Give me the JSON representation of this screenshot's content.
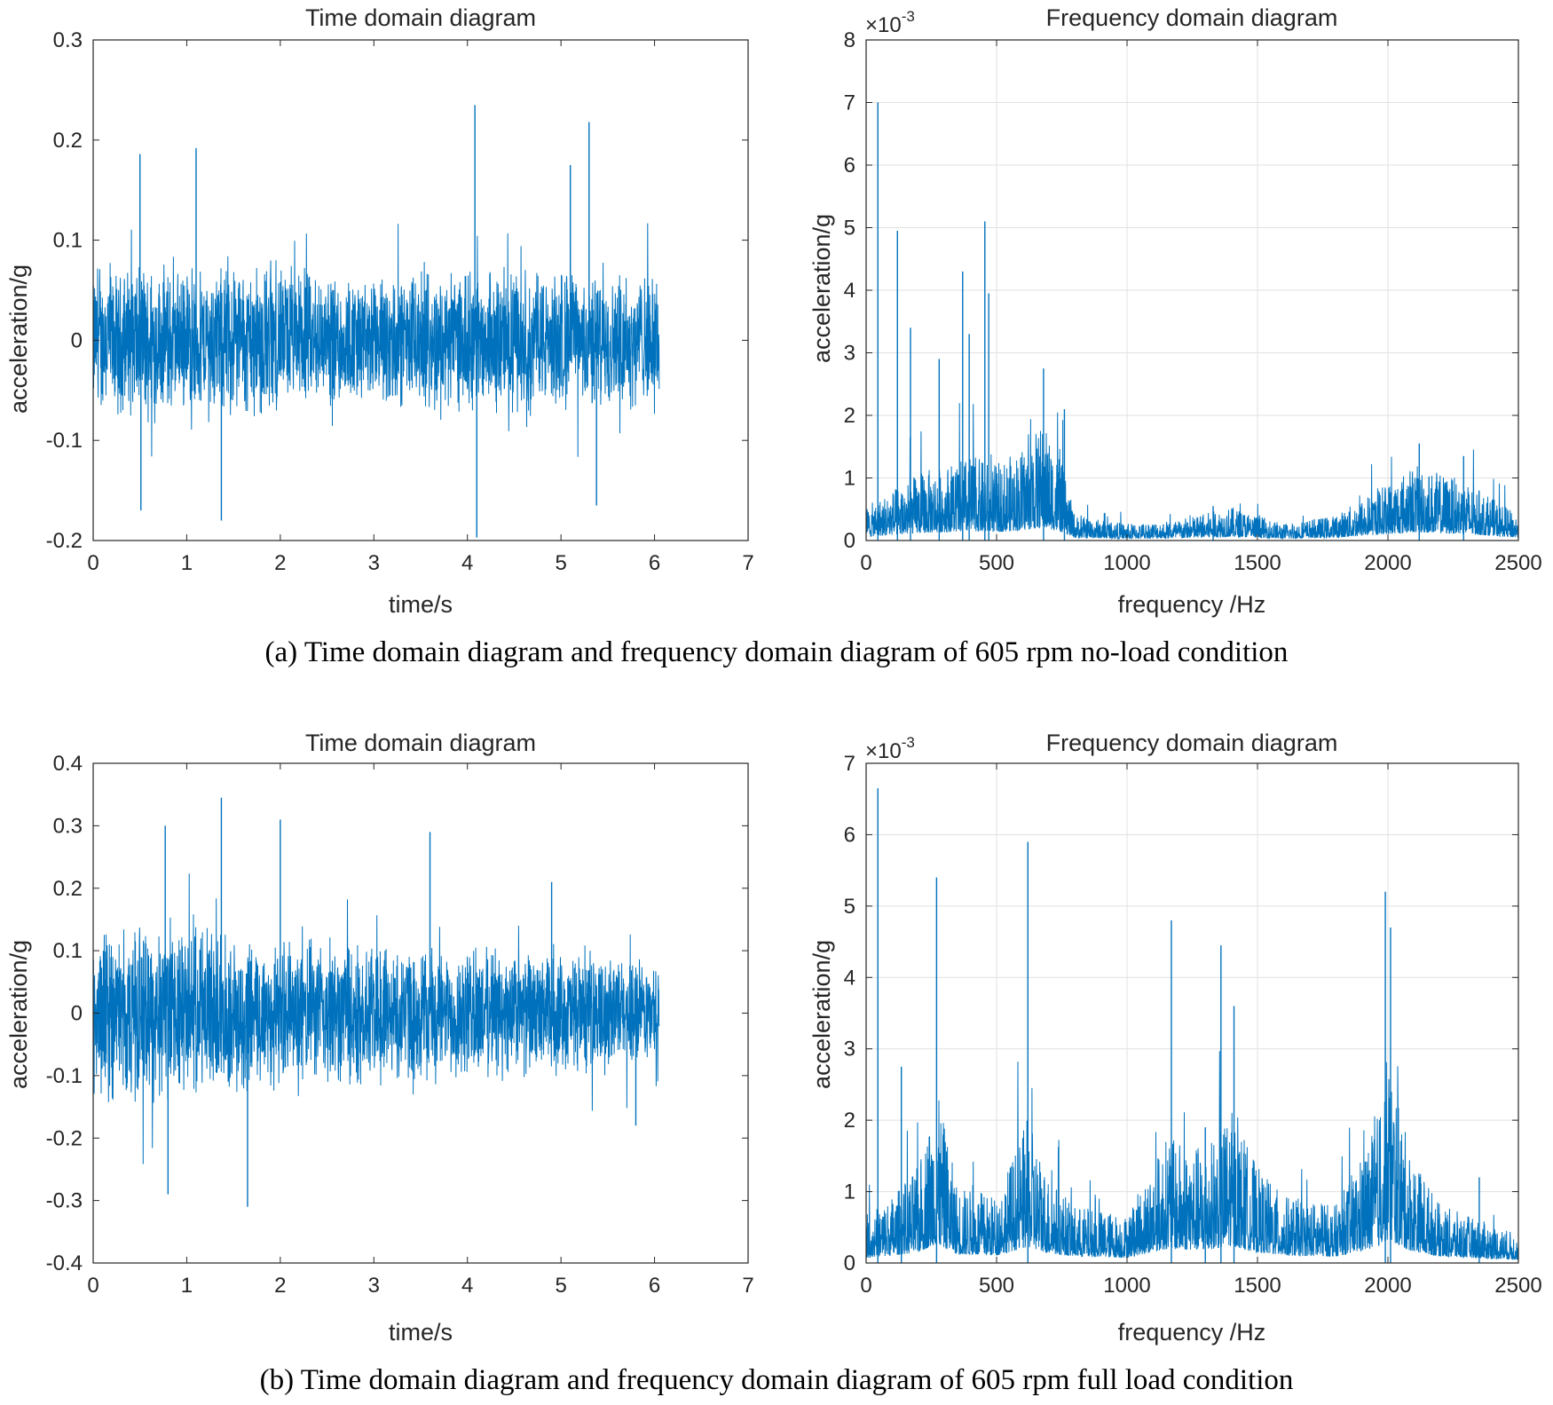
{
  "figure": {
    "caption_a": "(a) Time domain diagram and frequency domain diagram of 605 rpm no-load condition",
    "caption_b": "(b) Time domain diagram and frequency domain diagram of 605 rpm full load condition"
  },
  "panels": {
    "a_time": {
      "title": "Time domain diagram",
      "xlabel": "time/s",
      "ylabel": "acceleration/g"
    },
    "a_freq": {
      "title": "Frequency domain diagram",
      "xlabel": "frequency /Hz",
      "ylabel": "acceleration/g",
      "multiplier": "×10",
      "exponent": "-3"
    },
    "b_time": {
      "title": "Time domain diagram",
      "xlabel": "time/s",
      "ylabel": "acceleration/g"
    },
    "b_freq": {
      "title": "Frequency domain diagram",
      "xlabel": "frequency /Hz",
      "ylabel": "acceleration/g",
      "multiplier": "×10",
      "exponent": "-3"
    }
  },
  "chart_data": [
    {
      "id": "a_time",
      "type": "line",
      "title": "Time domain diagram",
      "xlabel": "time/s",
      "ylabel": "acceleration/g",
      "xlim": [
        0,
        7
      ],
      "ylim": [
        -0.2,
        0.3
      ],
      "xticks": [
        0,
        1,
        2,
        3,
        4,
        5,
        6,
        7
      ],
      "yticks": [
        -0.2,
        -0.1,
        0,
        0.1,
        0.2,
        0.3
      ],
      "ytick_labels": [
        "-0.2",
        "-0.1",
        "0",
        "0.1",
        "0.2",
        "0.3"
      ],
      "grid": false,
      "color": "#0072BD",
      "signal": {
        "t_start": 0,
        "t_end": 6.05,
        "offset": 0.0,
        "envelope": [
          [
            0,
            0.07
          ],
          [
            1.5,
            0.07
          ],
          [
            3.0,
            0.06
          ],
          [
            4.5,
            0.065
          ],
          [
            6.05,
            0.06
          ]
        ]
      },
      "peaks": [
        [
          0.5,
          0.186
        ],
        [
          0.51,
          -0.17
        ],
        [
          1.1,
          0.192
        ],
        [
          1.37,
          -0.18
        ],
        [
          4.08,
          0.235
        ],
        [
          4.1,
          -0.197
        ],
        [
          5.1,
          0.175
        ],
        [
          5.3,
          0.218
        ],
        [
          5.38,
          -0.165
        ]
      ]
    },
    {
      "id": "a_freq",
      "type": "line",
      "title": "Frequency domain diagram",
      "xlabel": "frequency /Hz",
      "ylabel": "acceleration/g",
      "xlim": [
        0,
        2500
      ],
      "ylim": [
        0,
        8
      ],
      "y_multiplier": "×10^-3",
      "xticks": [
        0,
        500,
        1000,
        1500,
        2000,
        2500
      ],
      "yticks": [
        0,
        1,
        2,
        3,
        4,
        5,
        6,
        7,
        8
      ],
      "grid": true,
      "color": "#0072BD",
      "spectrum_envelope": [
        [
          0,
          0.4
        ],
        [
          100,
          0.6
        ],
        [
          200,
          0.8
        ],
        [
          300,
          0.9
        ],
        [
          400,
          1.0
        ],
        [
          500,
          0.9
        ],
        [
          600,
          1.1
        ],
        [
          680,
          1.4
        ],
        [
          750,
          0.9
        ],
        [
          800,
          0.3
        ],
        [
          1000,
          0.2
        ],
        [
          1200,
          0.25
        ],
        [
          1400,
          0.4
        ],
        [
          1600,
          0.2
        ],
        [
          1800,
          0.3
        ],
        [
          2000,
          0.7
        ],
        [
          2100,
          0.9
        ],
        [
          2200,
          0.8
        ],
        [
          2300,
          0.7
        ],
        [
          2500,
          0.3
        ]
      ],
      "peaks": [
        [
          45,
          7.0
        ],
        [
          120,
          4.95
        ],
        [
          170,
          3.4
        ],
        [
          280,
          2.9
        ],
        [
          370,
          4.3
        ],
        [
          395,
          3.3
        ],
        [
          455,
          5.1
        ],
        [
          470,
          3.95
        ],
        [
          680,
          2.75
        ],
        [
          760,
          2.1
        ],
        [
          1330,
          0.55
        ],
        [
          2120,
          1.55
        ],
        [
          2290,
          1.35
        ]
      ]
    },
    {
      "id": "b_time",
      "type": "line",
      "title": "Time domain diagram",
      "xlabel": "time/s",
      "ylabel": "acceleration/g",
      "xlim": [
        0,
        7
      ],
      "ylim": [
        -0.4,
        0.4
      ],
      "xticks": [
        0,
        1,
        2,
        3,
        4,
        5,
        6,
        7
      ],
      "yticks": [
        -0.4,
        -0.3,
        -0.2,
        -0.1,
        0,
        0.1,
        0.2,
        0.3,
        0.4
      ],
      "ytick_labels": [
        "-0.4",
        "-0.3",
        "-0.2",
        "-0.1",
        "0",
        "0.1",
        "0.2",
        "0.3",
        "0.4"
      ],
      "grid": false,
      "color": "#0072BD",
      "signal": {
        "t_start": 0,
        "t_end": 6.05,
        "offset": 0.0,
        "envelope": [
          [
            0,
            0.13
          ],
          [
            1.5,
            0.12
          ],
          [
            3.0,
            0.1
          ],
          [
            4.5,
            0.095
          ],
          [
            6.05,
            0.08
          ]
        ]
      },
      "peaks": [
        [
          0.77,
          0.3
        ],
        [
          0.8,
          -0.29
        ],
        [
          1.37,
          0.345
        ],
        [
          1.65,
          -0.31
        ],
        [
          2.0,
          0.31
        ],
        [
          3.6,
          0.29
        ],
        [
          4.9,
          0.21
        ],
        [
          5.8,
          -0.18
        ]
      ]
    },
    {
      "id": "b_freq",
      "type": "line",
      "title": "Frequency domain diagram",
      "xlabel": "frequency /Hz",
      "ylabel": "acceleration/g",
      "xlim": [
        0,
        2500
      ],
      "ylim": [
        0,
        7
      ],
      "y_multiplier": "×10^-3",
      "xticks": [
        0,
        500,
        1000,
        1500,
        2000,
        2500
      ],
      "yticks": [
        0,
        1,
        2,
        3,
        4,
        5,
        6,
        7
      ],
      "grid": true,
      "color": "#0072BD",
      "spectrum_envelope": [
        [
          0,
          0.5
        ],
        [
          100,
          0.7
        ],
        [
          200,
          1.0
        ],
        [
          270,
          1.8
        ],
        [
          350,
          0.8
        ],
        [
          500,
          0.7
        ],
        [
          620,
          1.5
        ],
        [
          700,
          0.9
        ],
        [
          800,
          0.6
        ],
        [
          1000,
          0.5
        ],
        [
          1150,
          1.3
        ],
        [
          1300,
          1.2
        ],
        [
          1400,
          1.6
        ],
        [
          1500,
          1.0
        ],
        [
          1600,
          0.7
        ],
        [
          1800,
          0.6
        ],
        [
          1950,
          1.4
        ],
        [
          2000,
          2.2
        ],
        [
          2080,
          1.2
        ],
        [
          2200,
          0.6
        ],
        [
          2300,
          0.5
        ],
        [
          2500,
          0.3
        ]
      ],
      "peaks": [
        [
          45,
          6.65
        ],
        [
          270,
          5.4
        ],
        [
          135,
          2.75
        ],
        [
          620,
          5.9
        ],
        [
          1170,
          4.8
        ],
        [
          1360,
          4.45
        ],
        [
          1410,
          3.6
        ],
        [
          1990,
          5.2
        ],
        [
          2010,
          4.7
        ],
        [
          1300,
          1.9
        ],
        [
          2350,
          1.2
        ]
      ]
    }
  ]
}
